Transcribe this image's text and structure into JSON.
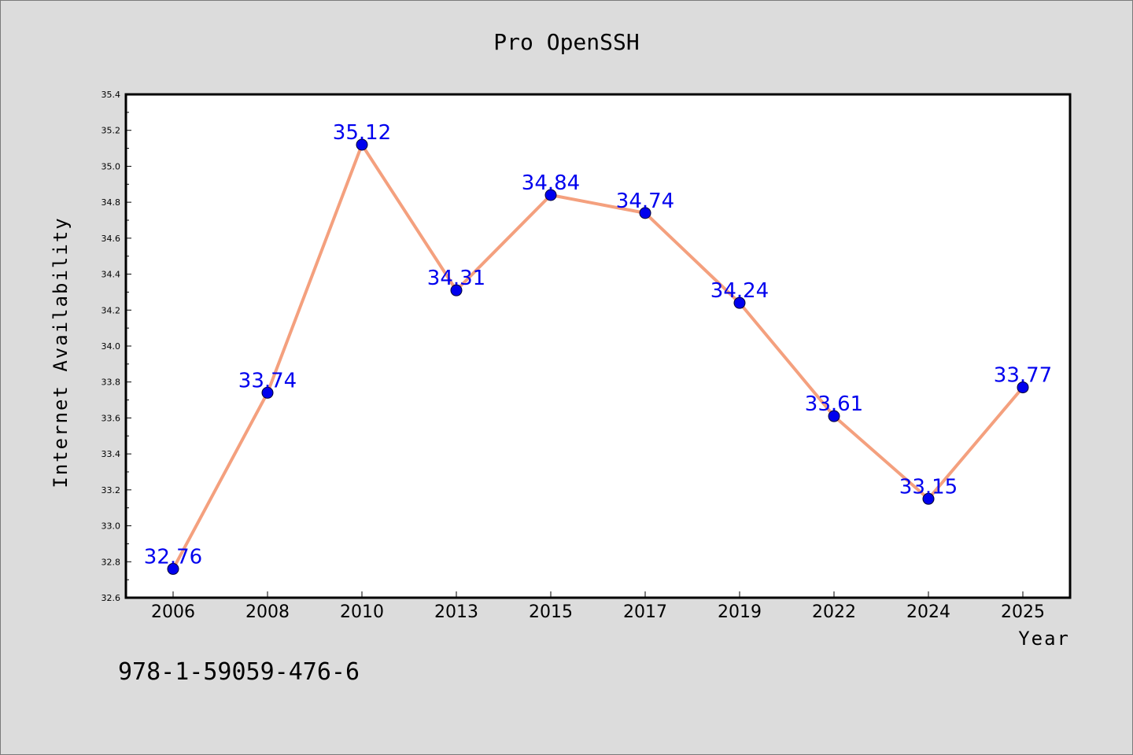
{
  "chart_data": {
    "type": "line",
    "title": "Pro OpenSSH",
    "xlabel": "Year",
    "ylabel": "Internet Availability",
    "categories": [
      "2006",
      "2008",
      "2010",
      "2013",
      "2015",
      "2017",
      "2019",
      "2022",
      "2024",
      "2025"
    ],
    "values": [
      32.76,
      33.74,
      35.12,
      34.31,
      34.84,
      34.74,
      34.24,
      33.61,
      33.15,
      33.77
    ],
    "data_labels": [
      "32.76",
      "33.74",
      "35.12",
      "34.31",
      "34.84",
      "34.74",
      "34.24",
      "33.61",
      "33.15",
      "33.77"
    ],
    "ylim": [
      32.6,
      35.4
    ],
    "yticks": [
      "32.6",
      "32.8",
      "33.0",
      "33.2",
      "33.4",
      "33.6",
      "33.8",
      "34.0",
      "34.2",
      "34.4",
      "34.6",
      "34.8",
      "35.0",
      "35.2",
      "35.4"
    ],
    "grid": false,
    "line_color": "#f4a07e",
    "marker_color": "#0000ee",
    "label_color": "#0000ee",
    "annotation": "978-1-59059-476-6"
  }
}
